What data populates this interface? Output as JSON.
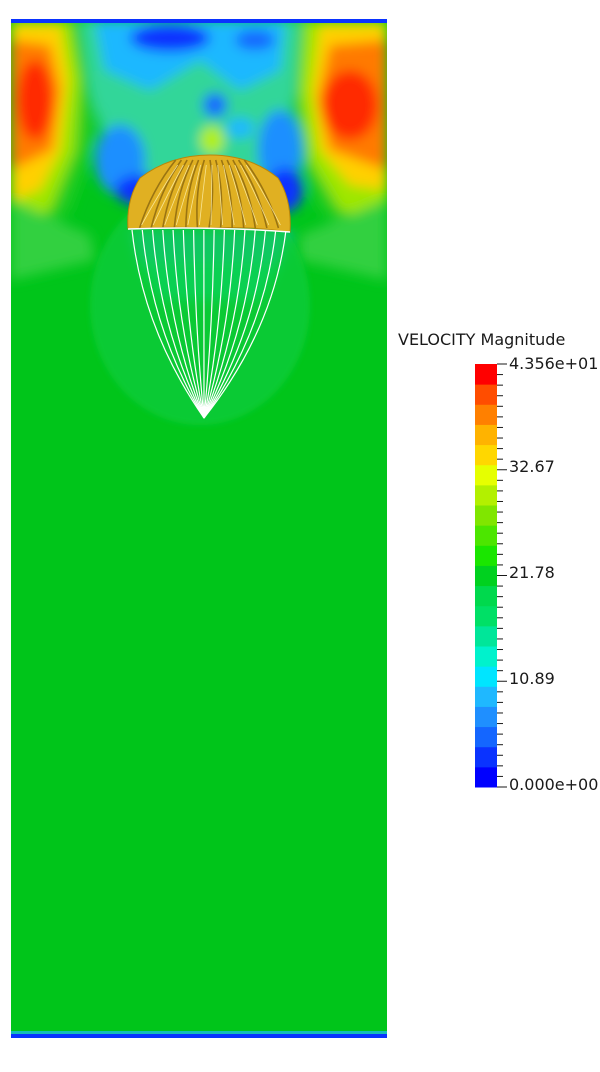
{
  "legend": {
    "title": "VELOCITY Magnitude",
    "max_label": "4.356e+01",
    "tick_1": "32.67",
    "tick_2": "21.78",
    "tick_3": "10.89",
    "min_label": "0.000e+00",
    "range": [
      0,
      43.56
    ],
    "bands": 21,
    "colors": [
      "#0000ff",
      "#0a33ff",
      "#1466ff",
      "#1f8fff",
      "#1fb8ff",
      "#00e5ff",
      "#00f2cc",
      "#00e699",
      "#00e066",
      "#00d94d",
      "#00d11f",
      "#1ae600",
      "#4ce600",
      "#80e600",
      "#b3f000",
      "#e6ff00",
      "#ffd700",
      "#ffb300",
      "#ff8000",
      "#ff4d00",
      "#ff0000"
    ]
  },
  "scene": {
    "background_color": "#00c51a",
    "canopy_color": "#e0b022"
  }
}
